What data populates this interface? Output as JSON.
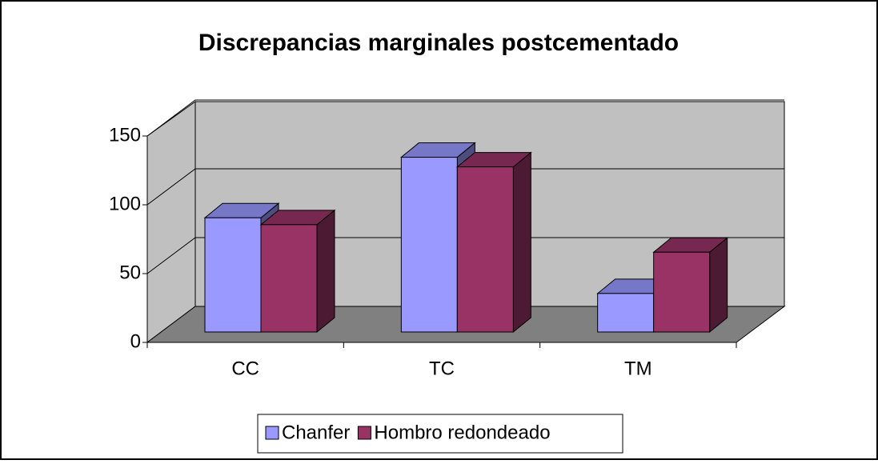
{
  "chart_data": {
    "type": "bar3d",
    "title": "Discrepancias marginales postcementado",
    "categories": [
      "CC",
      "TC",
      "TM"
    ],
    "series": [
      {
        "name": "Chanfer",
        "color": "#9999ff",
        "values": [
          83,
          127,
          28
        ]
      },
      {
        "name": "Hombro redondeado",
        "color": "#993366",
        "values": [
          78,
          120,
          58
        ]
      }
    ],
    "ylim": [
      0,
      150
    ],
    "yticks": [
      0,
      50,
      100,
      150
    ],
    "grid": true,
    "legend": "bottom"
  }
}
